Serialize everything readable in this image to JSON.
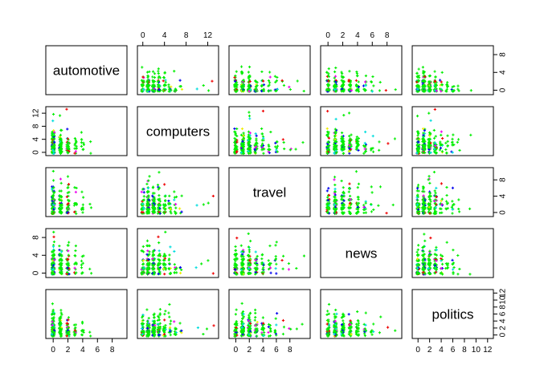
{
  "chart_data": {
    "type": "scatter",
    "variables": [
      "automotive",
      "computers",
      "travel",
      "news",
      "politics"
    ],
    "axes": {
      "automotive": {
        "range": [
          -1,
          10
        ],
        "ticks": [
          0,
          2,
          4,
          6,
          8
        ]
      },
      "computers": {
        "range": [
          -1,
          14
        ],
        "ticks": [
          0,
          4,
          8,
          12
        ]
      },
      "travel": {
        "range": [
          -1,
          11
        ],
        "ticks": [
          0,
          4,
          8
        ]
      },
      "news": {
        "range": [
          -1,
          10
        ],
        "ticks": [
          0,
          2,
          4,
          6,
          8
        ]
      },
      "politics": {
        "range": [
          -1,
          13
        ],
        "ticks": [
          0,
          2,
          4,
          6,
          8,
          10,
          12
        ]
      }
    },
    "axis_ticks": {
      "top": [
        {
          "variable": "computers",
          "ticks": [
            0,
            4,
            8,
            12
          ]
        },
        {
          "variable": "news",
          "ticks": [
            0,
            2,
            4,
            6,
            8
          ]
        }
      ],
      "right": [
        {
          "variable": "automotive",
          "ticks": [
            0,
            4,
            8
          ]
        },
        {
          "variable": "travel",
          "ticks": [
            0,
            4,
            8
          ]
        },
        {
          "variable": "politics",
          "ticks": [
            0,
            2,
            4,
            6,
            8,
            10,
            12
          ]
        }
      ],
      "bottom": [
        {
          "variable": "automotive",
          "ticks": [
            0,
            2,
            4,
            6,
            8
          ]
        },
        {
          "variable": "travel",
          "ticks": [
            0,
            2,
            4,
            6,
            8
          ]
        },
        {
          "variable": "politics",
          "ticks": [
            0,
            2,
            4,
            6,
            8,
            10,
            12
          ]
        }
      ],
      "left": [
        {
          "variable": "computers",
          "ticks": [
            0,
            4,
            8,
            12
          ]
        },
        {
          "variable": "news",
          "ticks": [
            0,
            4,
            8
          ]
        }
      ]
    },
    "point_colors": [
      "#00ee00",
      "#ee0000",
      "#0000ee",
      "#ee00ee",
      "#00dddd",
      "#eeee00"
    ],
    "marker": "plus",
    "grid": false,
    "legend": "none"
  }
}
